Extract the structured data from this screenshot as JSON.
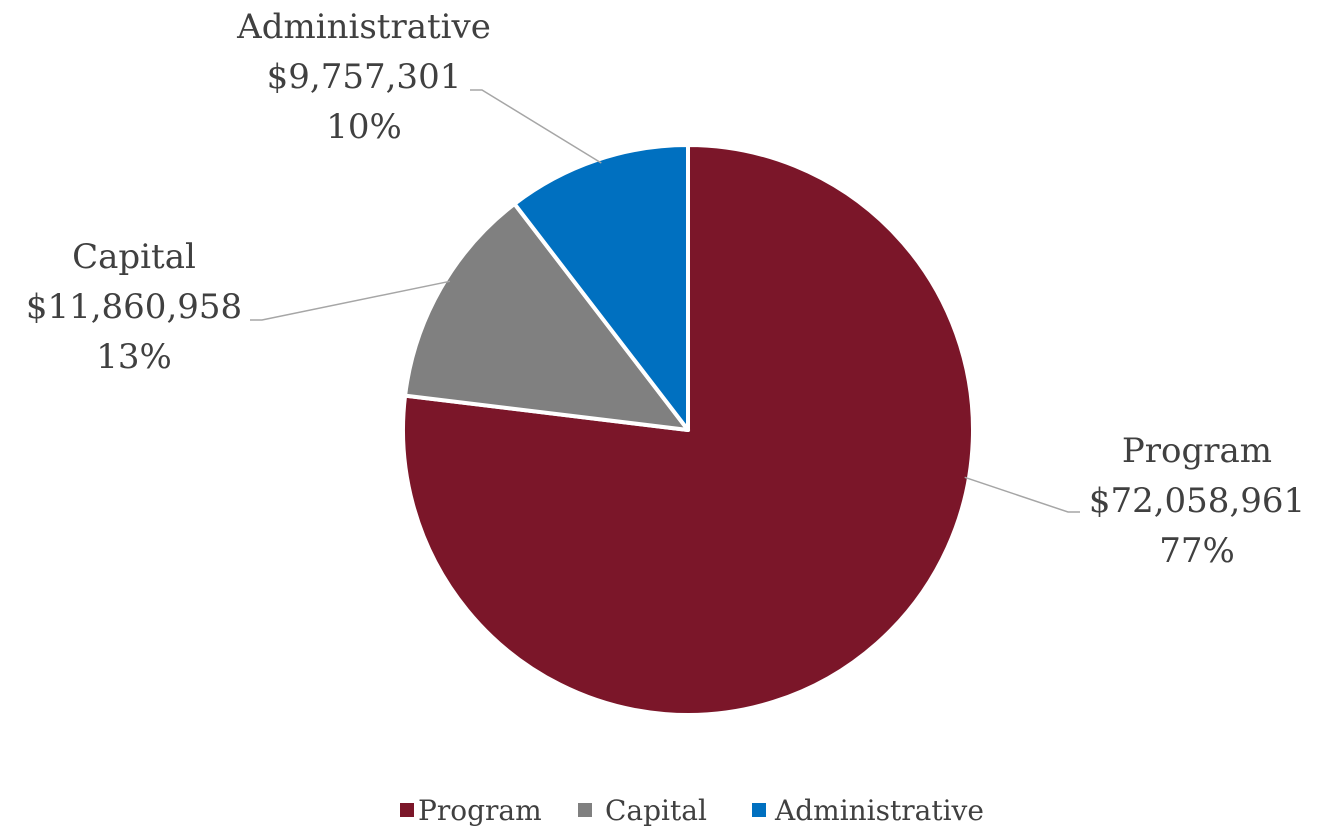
{
  "chart_data": {
    "type": "pie",
    "categories": [
      "Program",
      "Capital",
      "Administrative"
    ],
    "values": [
      72058961,
      11860958,
      9757301
    ],
    "value_labels": [
      "$72,058,961",
      "$11,860,958",
      "$9,757,301"
    ],
    "percent_labels": [
      "77%",
      "13%",
      "10%"
    ],
    "colors": [
      "#7B1629",
      "#808080",
      "#0070C0"
    ],
    "start_angle": "12 o'clock",
    "direction": "clockwise",
    "legend": {
      "placement": "bottom",
      "entries": [
        "Program",
        "Capital",
        "Administrative"
      ]
    }
  }
}
